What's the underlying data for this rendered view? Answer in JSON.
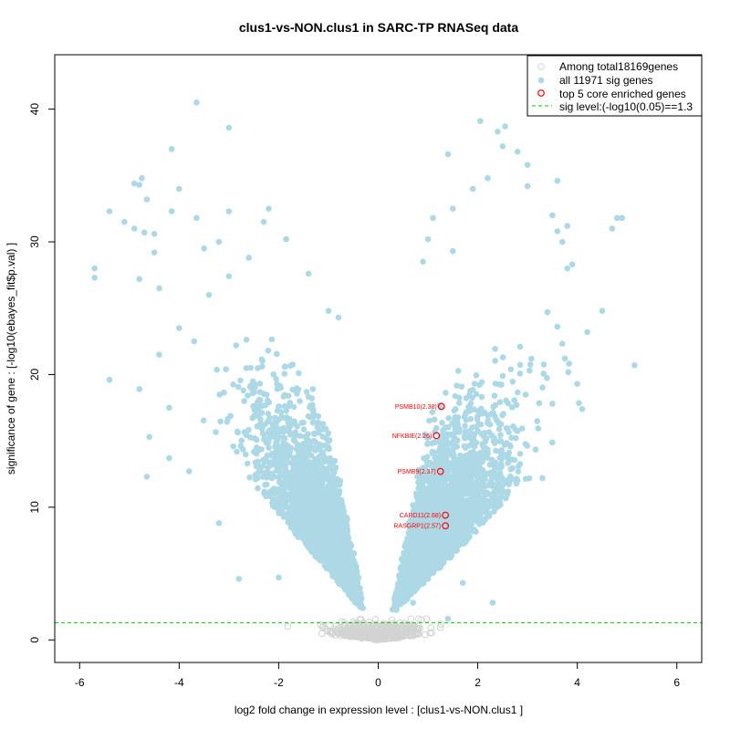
{
  "chart_data": {
    "type": "scatter",
    "title": "clus1-vs-NON.clus1 in SARC-TP RNASeq data",
    "xlabel": "log2 fold change in expression level : [clus1-vs-NON.clus1 ]",
    "ylabel": "significance of gene : [-log10(ebayes_fit$p.val) ]",
    "xlim": [
      -6.5,
      6.5
    ],
    "ylim": [
      -1.7,
      44.1
    ],
    "x_ticks": [
      -6,
      -4,
      -2,
      0,
      2,
      4,
      6
    ],
    "y_ticks": [
      0,
      10,
      20,
      30,
      40
    ],
    "grid": false,
    "legend_position": "top-right",
    "legend": [
      {
        "label": "Among total18169genes",
        "marker": "open-circle",
        "color": "#d3d3d3"
      },
      {
        "label": "all 11971 sig genes",
        "marker": "filled-circle",
        "color": "#add8e6"
      },
      {
        "label": "top 5 core enriched genes",
        "marker": "open-circle",
        "color": "#ff0000"
      },
      {
        "label": "sig level:(-log10(0.05)==1.3",
        "marker": "dashed-line",
        "color": "#00cc00"
      }
    ],
    "sig_level": 1.3,
    "colors": {
      "nonsig": "#d3d3d3",
      "sig": "#add8e6",
      "core": "#ff0000",
      "threshold": "#00cc00"
    },
    "core_genes": [
      {
        "label": "PSMB10(2.38)",
        "x": 1.27,
        "y": 17.6
      },
      {
        "label": "NFKBIE(2.26)",
        "x": 1.17,
        "y": 15.4
      },
      {
        "label": "PSMB9(2.37)",
        "x": 1.25,
        "y": 12.7
      },
      {
        "label": "CARD11(2.68)",
        "x": 1.35,
        "y": 9.4
      },
      {
        "label": "RASGRP1(2.57)",
        "x": 1.35,
        "y": 8.6
      }
    ],
    "sig_points": [
      [
        -3.65,
        40.5
      ],
      [
        -3.0,
        38.6
      ],
      [
        -4.15,
        37.0
      ],
      [
        -4.75,
        34.8
      ],
      [
        -4.8,
        34.3
      ],
      [
        -4.9,
        34.4
      ],
      [
        -4.0,
        34.0
      ],
      [
        -4.65,
        33.2
      ],
      [
        -3.0,
        32.3
      ],
      [
        -2.2,
        32.5
      ],
      [
        -5.4,
        32.3
      ],
      [
        -4.15,
        32.3
      ],
      [
        -3.65,
        31.8
      ],
      [
        -5.1,
        31.5
      ],
      [
        -4.9,
        31.0
      ],
      [
        -4.7,
        30.7
      ],
      [
        -4.5,
        30.6
      ],
      [
        -2.3,
        31.5
      ],
      [
        -3.2,
        30.0
      ],
      [
        -1.85,
        30.2
      ],
      [
        -3.5,
        29.5
      ],
      [
        -4.5,
        29.2
      ],
      [
        -2.6,
        28.8
      ],
      [
        -5.7,
        28.0
      ],
      [
        -5.7,
        27.3
      ],
      [
        -4.8,
        27.2
      ],
      [
        -3.0,
        27.4
      ],
      [
        -1.4,
        27.6
      ],
      [
        -4.4,
        26.5
      ],
      [
        -3.4,
        26.0
      ],
      [
        -1.0,
        24.8
      ],
      [
        -0.8,
        24.3
      ],
      [
        -4.0,
        23.5
      ],
      [
        -3.7,
        22.5
      ],
      [
        -4.4,
        21.5
      ],
      [
        -5.4,
        19.6
      ],
      [
        -4.8,
        18.9
      ],
      [
        -4.2,
        17.5
      ],
      [
        -4.6,
        15.3
      ],
      [
        -4.2,
        13.7
      ],
      [
        -3.8,
        12.7
      ],
      [
        -4.65,
        12.3
      ],
      [
        -3.2,
        8.8
      ],
      [
        -2.8,
        4.6
      ],
      [
        -2.0,
        4.7
      ],
      [
        2.05,
        39.1
      ],
      [
        2.4,
        38.3
      ],
      [
        2.55,
        38.7
      ],
      [
        1.4,
        36.6
      ],
      [
        2.5,
        37.2
      ],
      [
        2.8,
        36.8
      ],
      [
        3.0,
        35.8
      ],
      [
        2.2,
        34.8
      ],
      [
        3.6,
        34.6
      ],
      [
        3.0,
        34.2
      ],
      [
        1.9,
        34.0
      ],
      [
        1.1,
        31.8
      ],
      [
        1.5,
        32.5
      ],
      [
        3.5,
        32.0
      ],
      [
        3.6,
        30.8
      ],
      [
        4.8,
        31.8
      ],
      [
        4.9,
        31.8
      ],
      [
        4.7,
        31.0
      ],
      [
        3.8,
        31.2
      ],
      [
        3.7,
        30.0
      ],
      [
        1.0,
        30.2
      ],
      [
        1.5,
        29.3
      ],
      [
        3.9,
        28.3
      ],
      [
        0.9,
        28.5
      ],
      [
        3.8,
        28.0
      ],
      [
        3.4,
        24.7
      ],
      [
        4.5,
        24.8
      ],
      [
        4.2,
        23.2
      ],
      [
        3.6,
        23.6
      ],
      [
        5.15,
        20.7
      ],
      [
        4.0,
        19.3
      ],
      [
        4.1,
        17.4
      ],
      [
        3.5,
        17.8
      ],
      [
        3.3,
        12.2
      ],
      [
        1.7,
        4.3
      ],
      [
        2.3,
        2.8
      ],
      [
        1.4,
        1.6
      ],
      [
        0.7,
        2.8
      ]
    ]
  }
}
